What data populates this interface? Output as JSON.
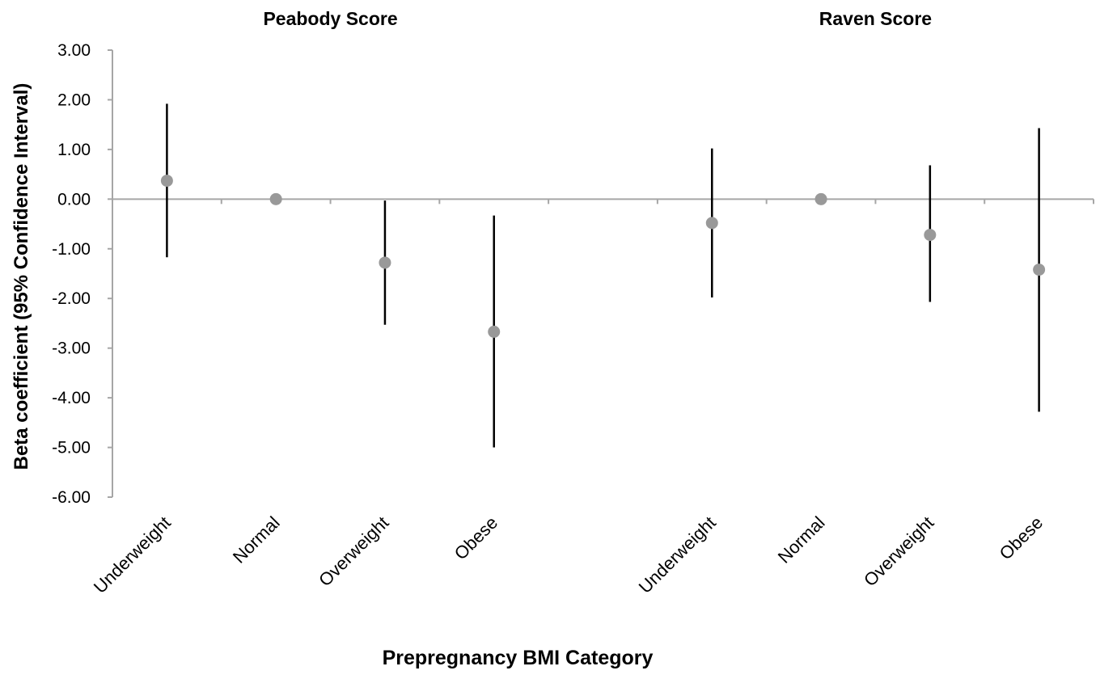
{
  "chart_data": {
    "type": "scatter",
    "subtype": "point-estimate with 95% confidence interval error bars",
    "panel_titles": [
      "Peabody Score",
      "Raven Score"
    ],
    "categories": [
      "Underweight",
      "Normal",
      "Overweight",
      "Obese",
      "",
      "Underweight",
      "Normal",
      "Overweight",
      "Obese"
    ],
    "points": [
      {
        "panel": "Peabody Score",
        "category": "Underweight",
        "estimate": 0.37,
        "ci_low": -1.17,
        "ci_high": 1.92
      },
      {
        "panel": "Peabody Score",
        "category": "Normal",
        "estimate": 0.0,
        "ci_low": null,
        "ci_high": null
      },
      {
        "panel": "Peabody Score",
        "category": "Overweight",
        "estimate": -1.28,
        "ci_low": -2.53,
        "ci_high": -0.03
      },
      {
        "panel": "Peabody Score",
        "category": "Obese",
        "estimate": -2.67,
        "ci_low": -5.0,
        "ci_high": -0.33
      },
      {
        "panel": "Raven Score",
        "category": "Underweight",
        "estimate": -0.48,
        "ci_low": -1.98,
        "ci_high": 1.02
      },
      {
        "panel": "Raven Score",
        "category": "Normal",
        "estimate": 0.0,
        "ci_low": null,
        "ci_high": null
      },
      {
        "panel": "Raven Score",
        "category": "Overweight",
        "estimate": -0.72,
        "ci_low": -2.07,
        "ci_high": 0.68
      },
      {
        "panel": "Raven Score",
        "category": "Obese",
        "estimate": -1.42,
        "ci_low": -4.28,
        "ci_high": 1.43
      }
    ],
    "y_ticks": [
      "3.00",
      "2.00",
      "1.00",
      "0.00",
      "-1.00",
      "-2.00",
      "-3.00",
      "-4.00",
      "-5.00",
      "-6.00"
    ],
    "ylim": [
      -6,
      3
    ],
    "xlabel": "Prepregnancy BMI Category",
    "ylabel": "Beta coefficient (95% Confidence Interval)",
    "grid": false,
    "legend": "none",
    "colors": {
      "point": "#999999",
      "error_bar": "#000000",
      "axis": "#a6a6a6"
    }
  }
}
